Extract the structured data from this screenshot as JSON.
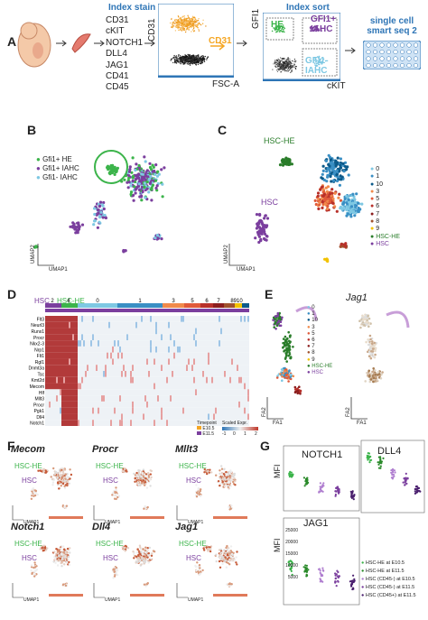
{
  "panels": {
    "A": {
      "letter": "A",
      "stain_title": "Index stain",
      "markers": [
        "CD31",
        "cKIT",
        "NOTCH1",
        "DLL4",
        "JAG1",
        "CD41",
        "CD45"
      ],
      "plot1_ylabel": "CD31",
      "plot1_xlabel": "FSC-A",
      "plot1_gate": "CD31",
      "sort_title": "Index sort",
      "plot2_ylabel": "GFI1",
      "plot2_xlabel": "cKIT",
      "gate_he": "HE",
      "gate_gfi1pos": "GFI1+ IAHC",
      "gate_gfi1neg": "GFI1- IAHC",
      "output_label": "single cell smart seq 2"
    },
    "B": {
      "letter": "B",
      "legend": [
        "Gfi1+ HE",
        "Gfi1+ IAHC",
        "Gfi1- IAHC"
      ],
      "xaxis": "UMAP1",
      "yaxis": "UMAP2"
    },
    "C": {
      "letter": "C",
      "label_hschet": "HSC-HE",
      "label_hsc": "HSC",
      "legend": [
        "0",
        "1",
        "10",
        "3",
        "5",
        "6",
        "7",
        "8",
        "9",
        "HSC-HE",
        "HSC"
      ],
      "xaxis": "UMAP1",
      "yaxis": "UMAP2"
    },
    "D": {
      "letter": "D",
      "top_hsc": "HSC",
      "top_hsche": "HSC-HE",
      "clusters": [
        "2",
        "4",
        "0",
        "1",
        "3",
        "5",
        "6",
        "7",
        "8910"
      ],
      "genes": [
        "Flt3",
        "Neurl3",
        "Runx1",
        "Procr",
        "Nkx2-3",
        "Nrp1",
        "Flt1",
        "Rgl1",
        "Dnmt3a",
        "Tsc",
        "Kmt2d",
        "Mecom",
        "Hlf",
        "Mllt3",
        "Procr",
        "Pgk1",
        "Dll4",
        "Notch1"
      ],
      "legend_timepoint": "Timepoint",
      "legend_scaled": "Scaled Expr.",
      "legend_e105": "E10.5",
      "legend_e115": "E11.5",
      "scale_ticks": [
        "-1",
        "0",
        "1",
        "2"
      ]
    },
    "E": {
      "letter": "E",
      "legend": [
        "0",
        "1",
        "10",
        "3",
        "5",
        "6",
        "7",
        "8",
        "9",
        "HSC-HE",
        "HSC"
      ],
      "gene": "Jag1",
      "xaxis": "FA1",
      "yaxis": "FA2"
    },
    "F": {
      "letter": "F",
      "genes": [
        "Mecom",
        "Procr",
        "Mllt3",
        "Notch1",
        "Dll4",
        "Jag1"
      ],
      "label_hsche": "HSC-HE",
      "label_hsc": "HSC",
      "xaxis": "UMAP1",
      "yaxis": "UMAP2"
    },
    "G": {
      "letter": "G",
      "titles": [
        "NOTCH1",
        "DLL4",
        "JAG1"
      ],
      "ylabel": "MFI",
      "yticks_jag": [
        "25000",
        "20000",
        "15000",
        "10000",
        "5000"
      ],
      "legend": [
        "HSC-HE at E10.5",
        "HSC-HE at E11.5",
        "HSC (CD45-) at E10.5",
        "HSC (CD45-) at E11.5",
        "HSC (CD45+) at E11.5"
      ]
    }
  },
  "colors": {
    "blue": "#2e75b6",
    "green": "#3cb44b",
    "purple": "#7b3f9e",
    "lightblue": "#7ec8e3",
    "orange": "#f5a623",
    "red": "#c0392b"
  }
}
